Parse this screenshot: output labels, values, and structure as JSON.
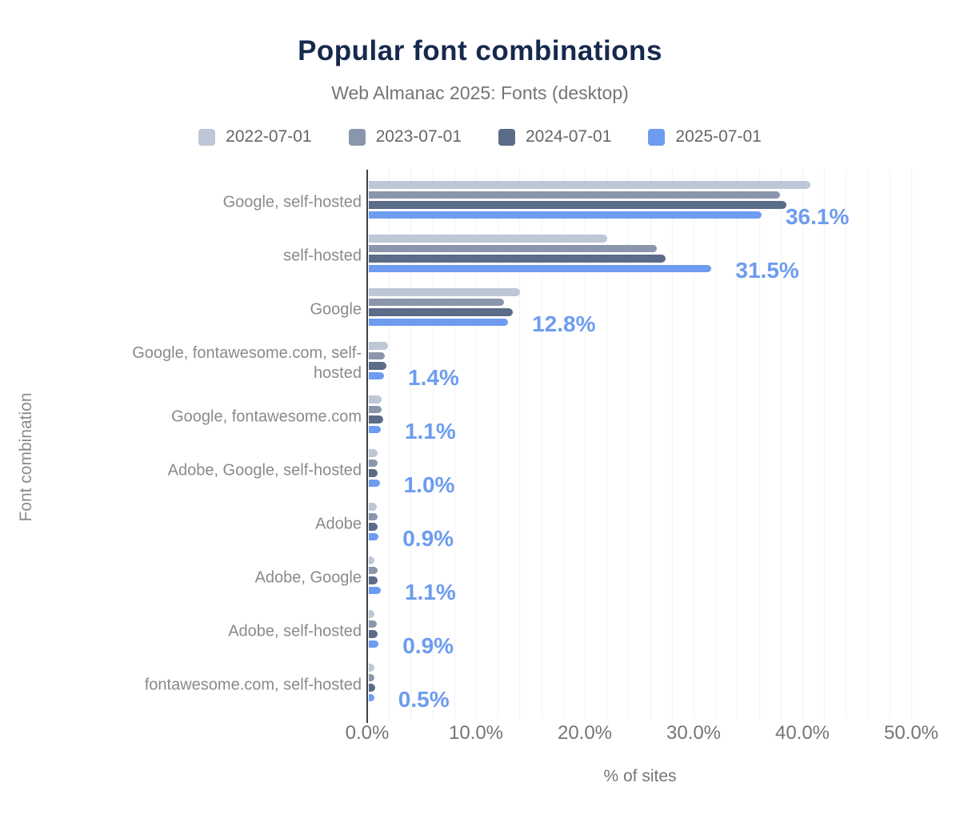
{
  "title": "Popular font combinations",
  "subtitle": "Web Almanac 2025: Fonts (desktop)",
  "colors": {
    "title": "#16294e",
    "muted_text": "#8a8a8a",
    "tick_text": "#757575",
    "axis_line": "#404040",
    "gridline": "#f1f3f6",
    "value_label": "#6d9cf0"
  },
  "chart_data": {
    "type": "bar",
    "orientation": "horizontal",
    "title": "Popular font combinations",
    "subtitle": "Web Almanac 2025: Fonts (desktop)",
    "xlabel": "% of sites",
    "ylabel": "Font combination",
    "xlim": [
      0,
      50
    ],
    "x_ticks": [
      {
        "label": "0.0%",
        "value": 0
      },
      {
        "label": "10.0%",
        "value": 10
      },
      {
        "label": "20.0%",
        "value": 20
      },
      {
        "label": "30.0%",
        "value": 30
      },
      {
        "label": "40.0%",
        "value": 40
      },
      {
        "label": "50.0%",
        "value": 50
      }
    ],
    "grid": true,
    "legend_position": "top",
    "categories": [
      "Google, self-hosted",
      "self-hosted",
      "Google",
      "Google, fontawesome.com, self-hosted",
      "Google, fontawesome.com",
      "Adobe, Google, self-hosted",
      "Adobe",
      "Adobe, Google",
      "Adobe, self-hosted",
      "fontawesome.com, self-hosted"
    ],
    "series": [
      {
        "name": "2022-07-01",
        "color": "#bdc7d6",
        "values": [
          40.6,
          21.9,
          13.9,
          1.8,
          1.2,
          0.8,
          0.7,
          0.5,
          0.5,
          0.5
        ]
      },
      {
        "name": "2023-07-01",
        "color": "#8a96ac",
        "values": [
          37.8,
          26.5,
          12.4,
          1.5,
          1.2,
          0.8,
          0.8,
          0.8,
          0.7,
          0.5
        ]
      },
      {
        "name": "2024-07-01",
        "color": "#5b6c88",
        "values": [
          38.4,
          27.3,
          13.2,
          1.6,
          1.3,
          0.8,
          0.8,
          0.8,
          0.8,
          0.6
        ]
      },
      {
        "name": "2025-07-01",
        "color": "#6d9cf0",
        "values": [
          36.1,
          31.5,
          12.8,
          1.4,
          1.1,
          1.0,
          0.9,
          1.1,
          0.9,
          0.5
        ]
      }
    ],
    "value_labels": {
      "series": "2025-07-01",
      "color": "#6d9cf0",
      "labels": [
        "36.1%",
        "31.5%",
        "12.8%",
        "1.4%",
        "1.1%",
        "1.0%",
        "0.9%",
        "1.1%",
        "0.9%",
        "0.5%"
      ]
    }
  }
}
